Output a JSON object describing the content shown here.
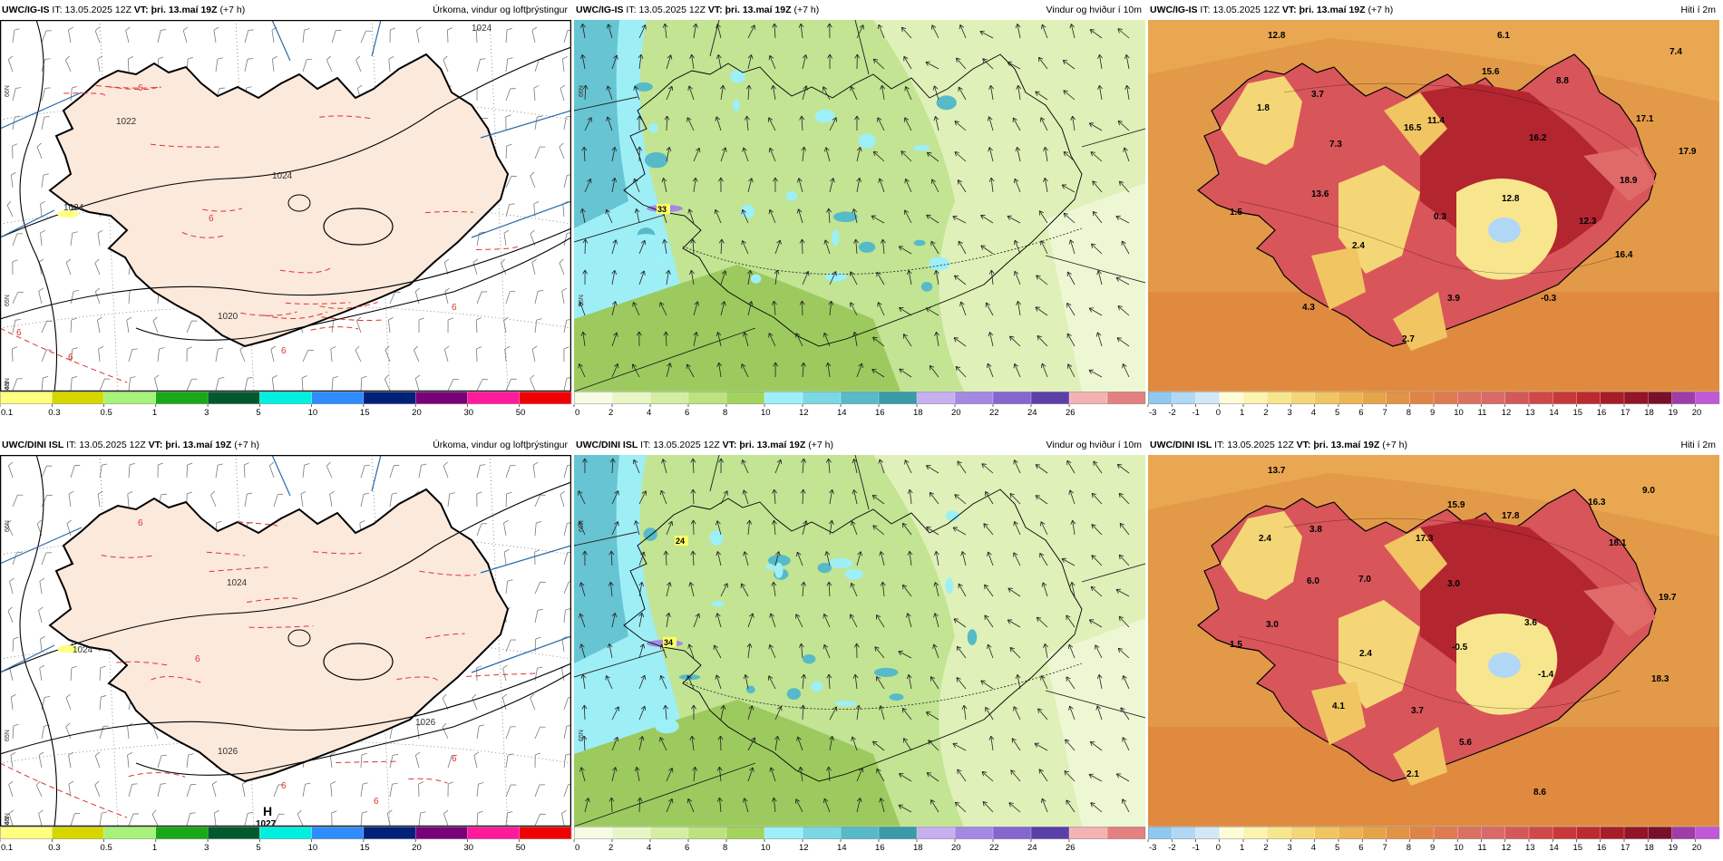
{
  "rows": [
    {
      "row_id": "ig",
      "panels": [
        {
          "type": "precip",
          "source": "UWC/IG-IS",
          "it_label": "IT:",
          "it_value": "13.05.2025 12Z",
          "vt_label": "VT:",
          "vt_value": "þri. 13.maí 19Z",
          "lead": "(+7 h)",
          "title": "Úrkoma, vindur og loftþrýstingur",
          "isobar_labels": [
            "1024",
            "1022",
            "1024",
            "1020",
            "1024"
          ],
          "temp_labels": [
            "6",
            "6",
            "6",
            "6",
            "6",
            "6"
          ],
          "lat_labels": [
            "66N",
            "65N",
            "64N",
            "63N"
          ],
          "pressure_center": null,
          "colorbar": {
            "ticks": [
              "0.1",
              "0.3",
              "0.5",
              "1",
              "3",
              "5",
              "10",
              "15",
              "20",
              "30",
              "50"
            ],
            "colors": [
              "#ffff80",
              "#d7d700",
              "#a6f27a",
              "#18a818",
              "#005a2d",
              "#00f0e0",
              "#2e8cff",
              "#00207a",
              "#780078",
              "#ff1a9c",
              "#f00000"
            ]
          }
        },
        {
          "type": "wind",
          "source": "UWC/IG-IS",
          "it_label": "IT:",
          "it_value": "13.05.2025 12Z",
          "vt_label": "VT:",
          "vt_value": "þri. 13.maí 19Z",
          "lead": "(+7 h)",
          "title": "Vindur og hviður í 10m",
          "gust_labels": [
            "33"
          ],
          "lat_labels": [
            "66N",
            "65N"
          ],
          "colorbar": {
            "ticks": [
              "0",
              "2",
              "4",
              "6",
              "8",
              "10",
              "12",
              "14",
              "16",
              "18",
              "20",
              "22",
              "24",
              "26"
            ],
            "colors": [
              "#f7fbe4",
              "#e8f6c6",
              "#d4eea2",
              "#bde27e",
              "#a2d35c",
              "#9df0f7",
              "#79d8e4",
              "#56bac9",
              "#3a9aa8",
              "#c6b0f0",
              "#a389e4",
              "#8466cf",
              "#5b3fa8",
              "#f4b2b2",
              "#e48080"
            ]
          }
        },
        {
          "type": "temp",
          "source": "UWC/IG-IS",
          "it_label": "IT:",
          "it_value": "13.05.2025 12Z",
          "vt_label": "VT:",
          "vt_value": "þri. 13.maí 19Z",
          "lead": "(+7 h)",
          "title": "Hiti í 2m",
          "temp_values": [
            "12.8",
            "6.1",
            "7.4",
            "3.7",
            "8.8",
            "1.8",
            "15.6",
            "16.5",
            "17.1",
            "11.4",
            "16.2",
            "17.9",
            "7.3",
            "13.6",
            "18.9",
            "12.8",
            "1.5",
            "0.3",
            "12.3",
            "2.4",
            "16.4",
            "3.9",
            "-0.3",
            "4.3",
            "2.7"
          ],
          "colorbar": {
            "ticks": [
              "-3",
              "-2",
              "-1",
              "0",
              "1",
              "2",
              "3",
              "4",
              "5",
              "6",
              "7",
              "8",
              "9",
              "10",
              "11",
              "12",
              "13",
              "14",
              "15",
              "16",
              "17",
              "18",
              "19",
              "20"
            ],
            "colors": [
              "#8fc8f0",
              "#b0d8f5",
              "#d2e8f6",
              "#fffdd6",
              "#fdf4b0",
              "#f8e68e",
              "#f4d676",
              "#f0c562",
              "#ecb452",
              "#e6a448",
              "#e39346",
              "#e08446",
              "#df7b50",
              "#dc7060",
              "#d96a68",
              "#d55858",
              "#d04848",
              "#c83838",
              "#bc2a2e",
              "#a81c28",
              "#921426",
              "#7a0f2a",
              "#a03ca8",
              "#c058d8"
            ]
          }
        }
      ]
    },
    {
      "row_id": "dini",
      "panels": [
        {
          "type": "precip",
          "source": "UWC/DINI ISL",
          "it_label": "IT:",
          "it_value": "13.05.2025 12Z",
          "vt_label": "VT:",
          "vt_value": "þri. 13.maí 19Z",
          "lead": "(+7 h)",
          "title": "Úrkoma, vindur og loftþrýstingur",
          "isobar_labels": [
            "1024",
            "1024",
            "1026",
            "1026"
          ],
          "temp_labels": [
            "6",
            "6",
            "6",
            "6",
            "6"
          ],
          "lat_labels": [
            "66N",
            "65N",
            "64N",
            "63N"
          ],
          "pressure_center": {
            "symbol": "H",
            "value": "1027"
          },
          "colorbar": {
            "ticks": [
              "0.1",
              "0.3",
              "0.5",
              "1",
              "3",
              "5",
              "10",
              "15",
              "20",
              "30",
              "50"
            ],
            "colors": [
              "#ffff80",
              "#d7d700",
              "#a6f27a",
              "#18a818",
              "#005a2d",
              "#00f0e0",
              "#2e8cff",
              "#00207a",
              "#780078",
              "#ff1a9c",
              "#f00000"
            ]
          }
        },
        {
          "type": "wind",
          "source": "UWC/DINI ISL",
          "it_label": "IT:",
          "it_value": "13.05.2025 12Z",
          "vt_label": "VT:",
          "vt_value": "þri. 13.maí 19Z",
          "lead": "(+7 h)",
          "title": "Vindur og hviður í 10m",
          "gust_labels": [
            "24",
            "34"
          ],
          "lat_labels": [
            "66N",
            "65N"
          ],
          "colorbar": {
            "ticks": [
              "0",
              "2",
              "4",
              "6",
              "8",
              "10",
              "12",
              "14",
              "16",
              "18",
              "20",
              "22",
              "24",
              "26"
            ],
            "colors": [
              "#f7fbe4",
              "#e8f6c6",
              "#d4eea2",
              "#bde27e",
              "#a2d35c",
              "#9df0f7",
              "#79d8e4",
              "#56bac9",
              "#3a9aa8",
              "#c6b0f0",
              "#a389e4",
              "#8466cf",
              "#5b3fa8",
              "#f4b2b2",
              "#e48080"
            ]
          }
        },
        {
          "type": "temp",
          "source": "UWC/DINI ISL",
          "it_label": "IT:",
          "it_value": "13.05.2025 12Z",
          "vt_label": "VT:",
          "vt_value": "þri. 13.maí 19Z",
          "lead": "(+7 h)",
          "title": "Hiti í 2m",
          "temp_values": [
            "13.7",
            "9.0",
            "2.4",
            "3.8",
            "15.9",
            "17.8",
            "16.3",
            "17.3",
            "18.1",
            "6.0",
            "7.0",
            "3.0",
            "19.7",
            "3.0",
            "3.6",
            "1.5",
            "2.4",
            "-0.5",
            "-1.4",
            "18.3",
            "4.1",
            "3.7",
            "5.6",
            "2.1",
            "8.6"
          ],
          "colorbar": {
            "ticks": [
              "-3",
              "-2",
              "-1",
              "0",
              "1",
              "2",
              "3",
              "4",
              "5",
              "6",
              "7",
              "8",
              "9",
              "10",
              "11",
              "12",
              "13",
              "14",
              "15",
              "16",
              "17",
              "18",
              "19",
              "20"
            ],
            "colors": [
              "#8fc8f0",
              "#b0d8f5",
              "#d2e8f6",
              "#fffdd6",
              "#fdf4b0",
              "#f8e68e",
              "#f4d676",
              "#f0c562",
              "#ecb452",
              "#e6a448",
              "#e39346",
              "#e08446",
              "#df7b50",
              "#dc7060",
              "#d96a68",
              "#d55858",
              "#d04848",
              "#c83838",
              "#bc2a2e",
              "#a81c28",
              "#921426",
              "#7a0f2a",
              "#a03ca8",
              "#c058d8"
            ]
          }
        }
      ]
    }
  ]
}
